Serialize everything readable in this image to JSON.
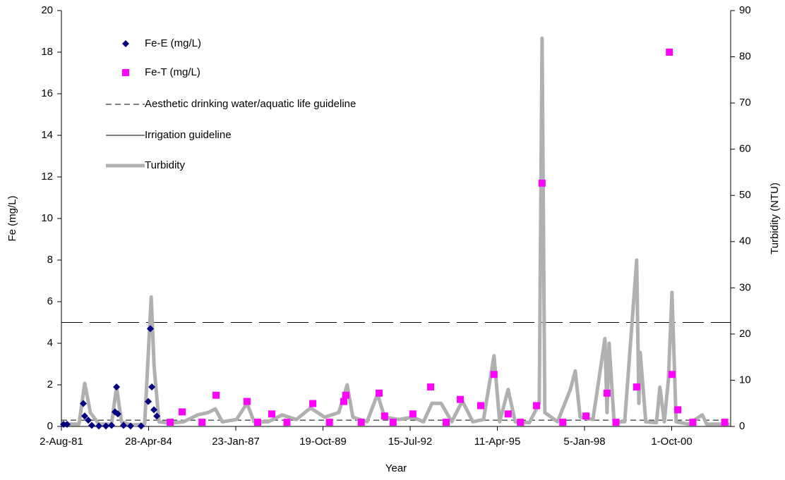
{
  "chart_data": {
    "type": "combo",
    "x_label": "Year",
    "y_label": "Fe (mg/L)",
    "y2_label": "Turbidity (NTU)",
    "xlim": [
      "1981-08-02",
      "2002-08-08"
    ],
    "xticks": [
      {
        "value": "1981-08-02",
        "label": "2-Aug-81"
      },
      {
        "value": "1984-04-28",
        "label": "28-Apr-84"
      },
      {
        "value": "1987-01-23",
        "label": "23-Jan-87"
      },
      {
        "value": "1989-10-19",
        "label": "19-Oct-89"
      },
      {
        "value": "1992-07-15",
        "label": "15-Jul-92"
      },
      {
        "value": "1995-04-11",
        "label": "11-Apr-95"
      },
      {
        "value": "1998-01-05",
        "label": "5-Jan-98"
      },
      {
        "value": "2000-10-01",
        "label": "1-Oct-00"
      }
    ],
    "ylim": [
      0,
      20
    ],
    "yticks": [
      0,
      2,
      4,
      6,
      8,
      10,
      12,
      14,
      16,
      18,
      20
    ],
    "y2lim": [
      0,
      90
    ],
    "y2ticks": [
      0,
      10,
      20,
      30,
      40,
      50,
      60,
      70,
      80,
      90
    ],
    "series": [
      {
        "name": "Fe-E (mg/L)",
        "type": "scatter",
        "marker": "diamond",
        "color": "#000080",
        "x": [
          "1981-08-26",
          "1981-10-06",
          "1982-04-10",
          "1982-04-26",
          "1982-06-06",
          "1982-07-16",
          "1982-10-05",
          "1982-12-25",
          "1983-02-28",
          "1983-04-09",
          "1983-04-26",
          "1983-05-11",
          "1983-07-15",
          "1983-10-04",
          "1984-02-02",
          "1984-04-24",
          "1984-05-18",
          "1984-06-04",
          "1984-06-28",
          "1984-07-31"
        ],
        "values": [
          0.1,
          0.1,
          1.1,
          0.5,
          0.3,
          0.05,
          0.02,
          0.02,
          0.05,
          0.7,
          1.9,
          0.6,
          0.05,
          0.02,
          0.02,
          1.2,
          4.7,
          1.9,
          0.8,
          0.5
        ]
      },
      {
        "name": "Fe-T (mg/L)",
        "type": "scatter",
        "marker": "square",
        "color": "#ff00ff",
        "x": [
          "1985-01-01",
          "1985-05-18",
          "1986-01-01",
          "1986-06-11",
          "1987-06-01",
          "1987-10-01",
          "1988-03-11",
          "1988-09-01",
          "1989-06-24",
          "1990-01-01",
          "1990-06-15",
          "1990-07-09",
          "1991-01-01",
          "1991-07-25",
          "1991-09-26",
          "1992-01-01",
          "1992-08-15",
          "1993-03-07",
          "1993-09-01",
          "1994-02-10",
          "1994-10-03",
          "1995-03-04",
          "1995-08-13",
          "1996-01-01",
          "1996-07-04",
          "1996-09-05",
          "1997-05-01",
          "1998-01-22",
          "1998-09-20",
          "1999-01-01",
          "1999-08-26",
          "2000-09-04",
          "2000-10-04",
          "2000-12-10",
          "2001-06-01",
          "2002-06-01"
        ],
        "values": [
          0.2,
          0.7,
          0.2,
          1.5,
          1.2,
          0.2,
          0.6,
          0.2,
          1.1,
          0.2,
          1.2,
          1.5,
          0.2,
          1.6,
          0.5,
          0.2,
          0.6,
          1.9,
          0.2,
          1.3,
          1.0,
          2.5,
          0.6,
          0.2,
          1.0,
          11.7,
          0.2,
          0.5,
          1.6,
          0.2,
          1.9,
          18,
          2.5,
          0.8,
          0.2,
          0.2
        ]
      },
      {
        "name": "Turbidity",
        "type": "line",
        "axis": "y2",
        "color": "#b0b0b0",
        "x": [
          "1981-08-02",
          "1981-11-15",
          "1982-02-20",
          "1982-04-26",
          "1982-06-30",
          "1982-10-06",
          "1983-02-28",
          "1983-04-26",
          "1983-06-22",
          "1983-10-06",
          "1984-03-14",
          "1984-05-28",
          "1984-06-30",
          "1984-08-25",
          "1984-12-23",
          "1985-06-03",
          "1985-11-12",
          "1986-03-13",
          "1986-06-02",
          "1986-08-22",
          "1987-01-31",
          "1987-06-01",
          "1987-08-21",
          "1988-01-29",
          "1988-07-09",
          "1988-12-18",
          "1989-05-29",
          "1989-11-07",
          "1990-04-18",
          "1990-07-24",
          "1990-09-27",
          "1991-03-08",
          "1991-07-07",
          "1991-09-26",
          "1992-03-06",
          "1992-08-15",
          "1992-12-15",
          "1993-03-22",
          "1993-07-05",
          "1993-11-04",
          "1994-03-05",
          "1994-07-04",
          "1994-11-03",
          "1995-03-04",
          "1995-05-08",
          "1995-08-13",
          "1995-11-02",
          "1996-04-12",
          "1996-08-04",
          "1996-09-05",
          "1996-10-07",
          "1997-03-02",
          "1997-07-26",
          "1997-09-21",
          "1997-11-16",
          "1998-04-11",
          "1998-08-27",
          "1998-09-20",
          "1998-10-14",
          "1998-12-10",
          "1999-04-11",
          "1999-08-26",
          "1999-09-20",
          "1999-10-06",
          "1999-12-09",
          "2000-04-09",
          "2000-05-19",
          "2000-07-08",
          "2000-08-24",
          "2000-10-04",
          "2000-11-21",
          "2001-04-08",
          "2001-09-17",
          "2001-11-06",
          "2002-07-26"
        ],
        "values": [
          0.5,
          0.5,
          0.5,
          9.3,
          3,
          0.5,
          0.5,
          8.5,
          1,
          0.3,
          0.5,
          28,
          13,
          1,
          0.7,
          1,
          2.5,
          3,
          3.8,
          1,
          1.5,
          5,
          1,
          1,
          2.5,
          1.5,
          4,
          2,
          3,
          9,
          2,
          1,
          7,
          2,
          1.5,
          2,
          1,
          5,
          5,
          1,
          5.5,
          1,
          1.5,
          15.3,
          1,
          8,
          1,
          0.8,
          5,
          84,
          3,
          1,
          8,
          12,
          2,
          1.5,
          19,
          3,
          18,
          1,
          1,
          36,
          5,
          16,
          1,
          0.8,
          8.5,
          1,
          10,
          29,
          1,
          0.5,
          2.5,
          0.5,
          0.5
        ]
      }
    ],
    "guidelines": [
      {
        "name": "Aesthetic drinking water/aquatic life guideline",
        "value": 0.3,
        "style": "dashed",
        "color": "#000000"
      },
      {
        "name": "Irrigation guideline",
        "value": 5,
        "style": "long-dash",
        "color": "#000000"
      }
    ]
  }
}
